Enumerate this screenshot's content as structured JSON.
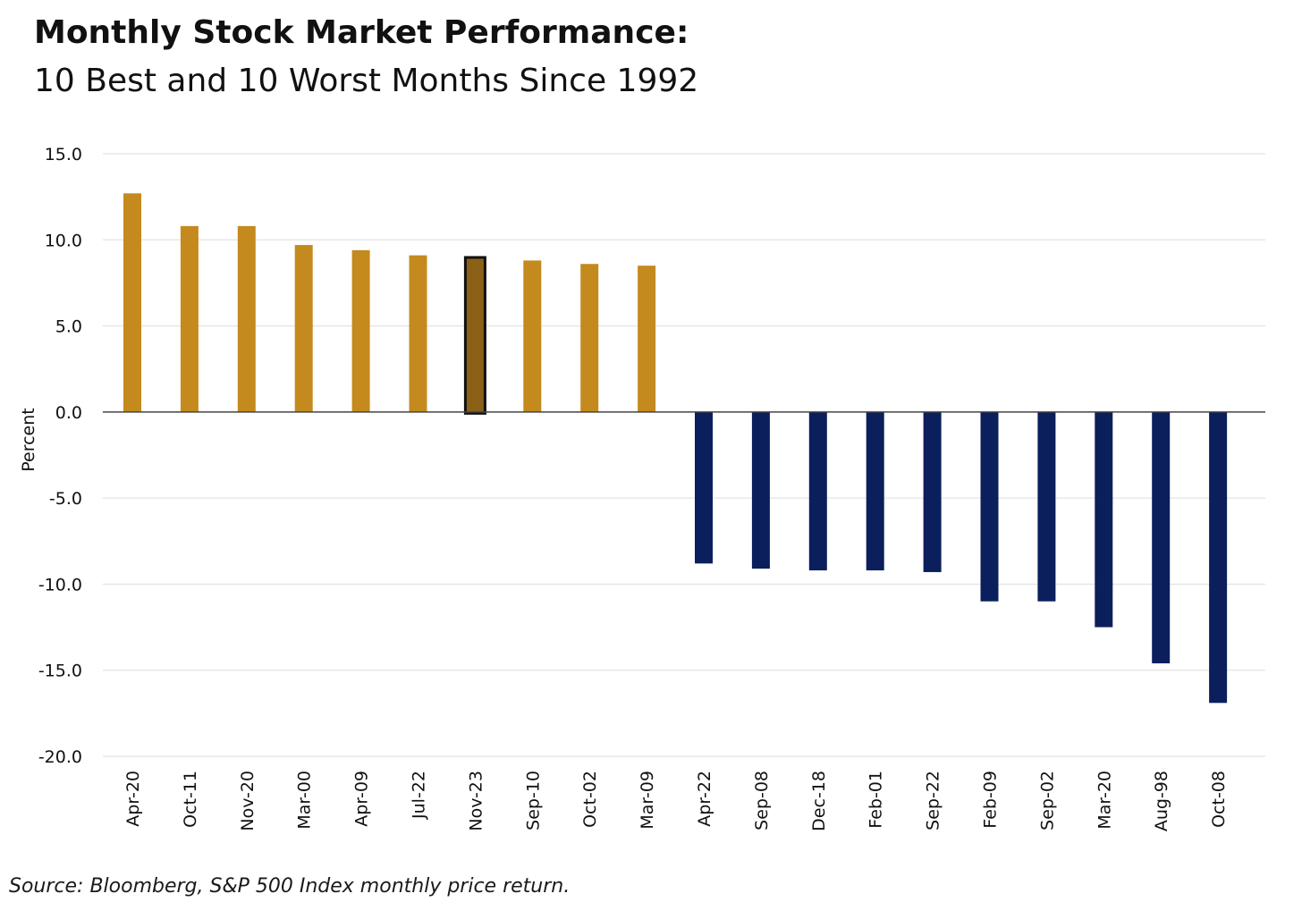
{
  "header": {
    "title": "Monthly Stock Market Performance:",
    "subtitle": "10 Best and 10 Worst Months Since 1992"
  },
  "footer": {
    "source": "Source: Bloomberg, S&P 500 Index monthly price return."
  },
  "colors": {
    "best": "#C48A1E",
    "highlight": "#8B6118",
    "worst": "#0B1F5C",
    "grid": "#DDDDDD",
    "zero_line": "#444444",
    "text": "#111111"
  },
  "chart_data": {
    "type": "bar",
    "title": "Monthly Stock Market Performance:",
    "subtitle": "10 Best and 10 Worst Months Since 1992",
    "xlabel": "",
    "ylabel": "Percent",
    "ylim": [
      -20,
      15
    ],
    "yticks": [
      15,
      10,
      5,
      0,
      -5,
      -10,
      -15,
      -20
    ],
    "ytick_labels": [
      "15.0",
      "10.0",
      "5.0",
      "0.0",
      "-5.0",
      "-10.0",
      "-15.0",
      "-20.0"
    ],
    "grid": true,
    "highlighted_category": "Nov-23",
    "categories": [
      "Apr-20",
      "Oct-11",
      "Nov-20",
      "Mar-00",
      "Apr-09",
      "Jul-22",
      "Nov-23",
      "Sep-10",
      "Oct-02",
      "Mar-09",
      "Apr-22",
      "Sep-08",
      "Dec-18",
      "Feb-01",
      "Sep-22",
      "Feb-09",
      "Sep-02",
      "Mar-20",
      "Aug-98",
      "Oct-08"
    ],
    "values": [
      12.7,
      10.8,
      10.8,
      9.7,
      9.4,
      9.1,
      8.9,
      8.8,
      8.6,
      8.5,
      -8.8,
      -9.1,
      -9.2,
      -9.2,
      -9.3,
      -11.0,
      -11.0,
      -12.5,
      -14.6,
      -16.9
    ]
  }
}
